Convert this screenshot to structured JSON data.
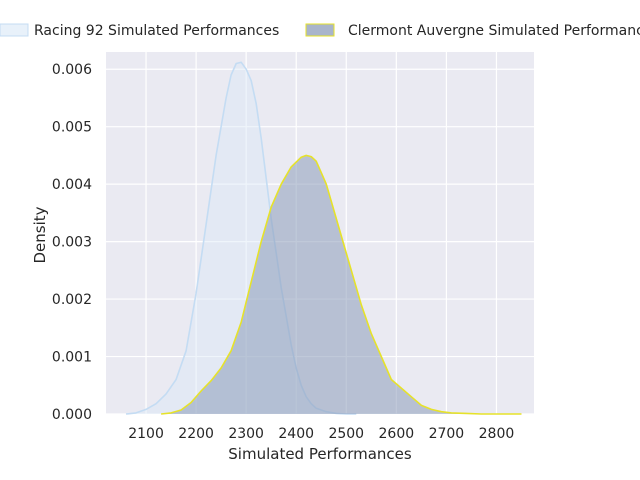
{
  "chart_data": {
    "type": "area",
    "xlabel": "Simulated Performances",
    "ylabel": "Density",
    "xlim": [
      2020,
      2875
    ],
    "ylim": [
      0,
      0.0063
    ],
    "grid": true,
    "legend_position": "top",
    "x_ticks": [
      {
        "value": 2100,
        "label": "2100"
      },
      {
        "value": 2200,
        "label": "2200"
      },
      {
        "value": 2300,
        "label": "2300"
      },
      {
        "value": 2400,
        "label": "2400"
      },
      {
        "value": 2500,
        "label": "2500"
      },
      {
        "value": 2600,
        "label": "2600"
      },
      {
        "value": 2700,
        "label": "2700"
      },
      {
        "value": 2800,
        "label": "2800"
      }
    ],
    "y_ticks": [
      {
        "value": 0.0,
        "label": "0.000"
      },
      {
        "value": 0.001,
        "label": "0.001"
      },
      {
        "value": 0.002,
        "label": "0.002"
      },
      {
        "value": 0.003,
        "label": "0.003"
      },
      {
        "value": 0.004,
        "label": "0.004"
      },
      {
        "value": 0.005,
        "label": "0.005"
      },
      {
        "value": 0.006,
        "label": "0.006"
      }
    ],
    "series": [
      {
        "name": "Racing 92 Simulated Performances",
        "fill": "#dce9f7",
        "fill_opacity": 0.45,
        "line": "#c4dcf3",
        "x": [
          2060,
          2080,
          2100,
          2120,
          2140,
          2160,
          2180,
          2200,
          2220,
          2240,
          2260,
          2270,
          2280,
          2290,
          2300,
          2310,
          2320,
          2330,
          2340,
          2350,
          2360,
          2370,
          2380,
          2390,
          2400,
          2410,
          2420,
          2430,
          2440,
          2460,
          2480,
          2500,
          2520
        ],
        "y": [
          0.0,
          2e-05,
          8e-05,
          0.00018,
          0.00035,
          0.0006,
          0.0011,
          0.0021,
          0.0033,
          0.0045,
          0.0055,
          0.0059,
          0.0061,
          0.00612,
          0.006,
          0.0058,
          0.0054,
          0.0048,
          0.0041,
          0.0034,
          0.0028,
          0.0022,
          0.0017,
          0.0012,
          0.0008,
          0.0005,
          0.0003,
          0.00018,
          0.0001,
          4e-05,
          1e-05,
          0.0,
          0.0
        ]
      },
      {
        "name": "Clermont Auvergne Simulated Performances",
        "fill": "#8c9cba",
        "fill_opacity": 0.55,
        "line": "#e6e22a",
        "x": [
          2130,
          2150,
          2170,
          2190,
          2210,
          2230,
          2250,
          2270,
          2290,
          2310,
          2330,
          2350,
          2370,
          2390,
          2410,
          2420,
          2430,
          2440,
          2450,
          2460,
          2470,
          2490,
          2510,
          2530,
          2550,
          2570,
          2590,
          2610,
          2630,
          2650,
          2670,
          2690,
          2710,
          2740,
          2770,
          2800,
          2850
        ],
        "y": [
          0.0,
          2e-05,
          7e-05,
          0.0002,
          0.0004,
          0.00058,
          0.0008,
          0.0011,
          0.0016,
          0.0023,
          0.003,
          0.0036,
          0.004,
          0.0043,
          0.00447,
          0.0045,
          0.00448,
          0.0044,
          0.0042,
          0.004,
          0.0037,
          0.0031,
          0.0025,
          0.0019,
          0.0014,
          0.001,
          0.0006,
          0.00045,
          0.0003,
          0.00015,
          8e-05,
          4e-05,
          2e-05,
          1e-05,
          0.0,
          0.0,
          0.0
        ]
      }
    ]
  }
}
